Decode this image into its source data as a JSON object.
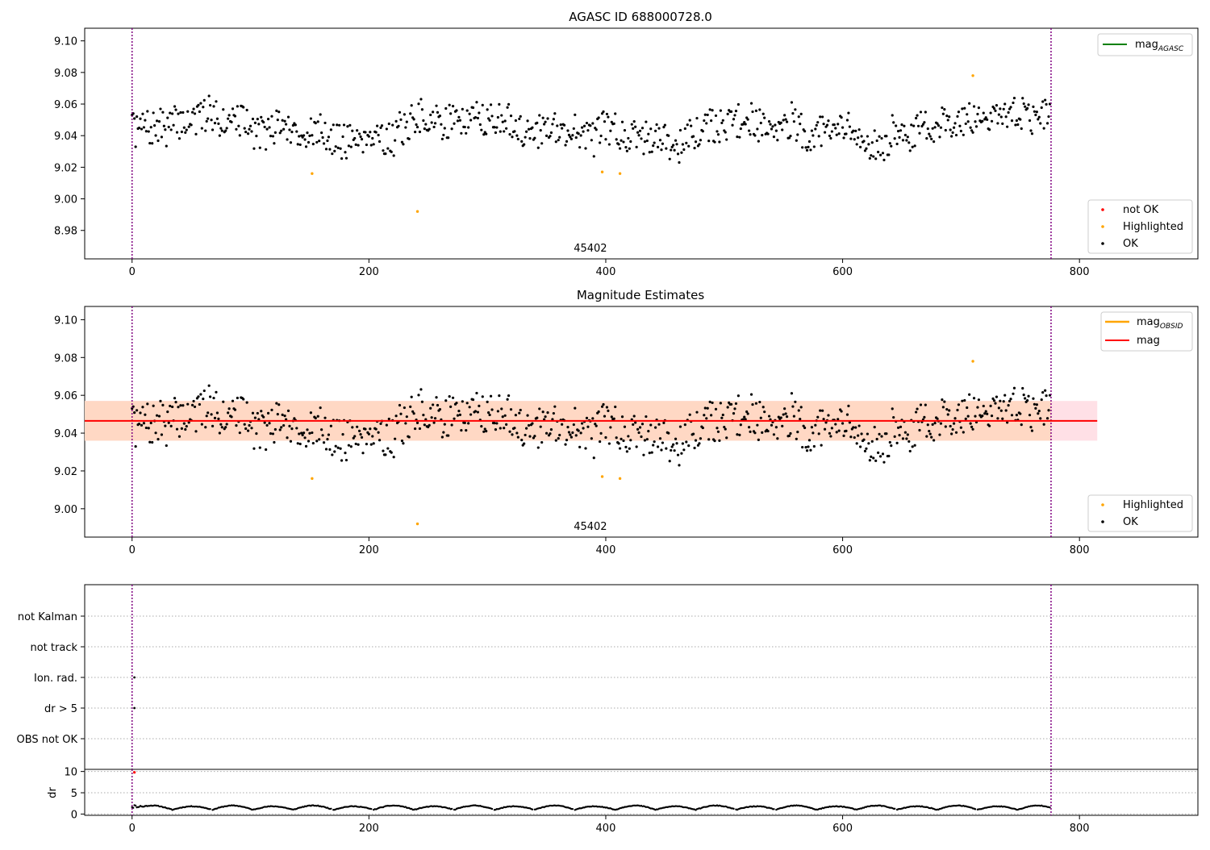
{
  "colors": {
    "ok": "#000000",
    "highlighted": "#ffa500",
    "not_ok": "#ff0000",
    "mag_agasc": "#008000",
    "mag_obsid": "#ffa500",
    "mag": "#ff0000",
    "band_outer": "#ffe0e6",
    "band_inner": "#ffd8c4",
    "obs_boundary": "#800080"
  },
  "chart_data": [
    {
      "id": "agasc",
      "type": "scatter",
      "title": "AGASC ID 688000728.0",
      "xlabel": "",
      "ylabel": "",
      "xlim": [
        -40,
        900
      ],
      "ylim": [
        8.962,
        9.108
      ],
      "xticks": [
        0,
        200,
        400,
        600,
        800
      ],
      "yticks": [
        8.98,
        9.0,
        9.02,
        9.04,
        9.06,
        9.08,
        9.1
      ],
      "obsid_label": {
        "text": "45402",
        "x": 387
      },
      "obs_boundaries": [
        0,
        776
      ],
      "legend_lines": [
        {
          "label": "mag",
          "subscript": "AGASC",
          "color_key": "mag_agasc"
        }
      ],
      "legend_points": [
        {
          "label": "not OK",
          "color_key": "not_ok"
        },
        {
          "label": "Highlighted",
          "color_key": "highlighted"
        },
        {
          "label": "OK",
          "color_key": "ok"
        }
      ],
      "series": [
        {
          "name": "Highlighted",
          "color_key": "highlighted",
          "x": [
            152,
            241,
            397,
            412,
            710
          ],
          "y": [
            9.016,
            8.992,
            9.017,
            9.016,
            9.078
          ]
        }
      ],
      "ok_points": {
        "n": 776,
        "base": 9.045,
        "seed": 7
      }
    },
    {
      "id": "mag_estimates",
      "type": "scatter",
      "title": "Magnitude Estimates",
      "xlabel": "",
      "ylabel": "",
      "xlim": [
        -40,
        900
      ],
      "ylim": [
        8.985,
        9.107
      ],
      "xticks": [
        0,
        200,
        400,
        600,
        800
      ],
      "yticks": [
        9.0,
        9.02,
        9.04,
        9.06,
        9.08,
        9.1
      ],
      "obsid_label": {
        "text": "45402",
        "x": 387
      },
      "obs_boundaries": [
        0,
        776
      ],
      "mag_line": {
        "value": 9.0465,
        "x": [
          -40,
          815
        ]
      },
      "mag_obsid_band": {
        "low": 9.036,
        "high": 9.057,
        "x": [
          -40,
          815
        ]
      },
      "legend_lines": [
        {
          "label": "mag",
          "subscript": "OBSID",
          "color_key": "mag_obsid"
        },
        {
          "label": "mag",
          "subscript": "",
          "color_key": "mag"
        }
      ],
      "legend_points": [
        {
          "label": "Highlighted",
          "color_key": "highlighted"
        },
        {
          "label": "OK",
          "color_key": "ok"
        }
      ],
      "series": [
        {
          "name": "Highlighted",
          "color_key": "highlighted",
          "x": [
            152,
            241,
            397,
            412,
            710
          ],
          "y": [
            9.016,
            8.992,
            9.017,
            9.016,
            9.078
          ]
        }
      ],
      "ok_points": {
        "n": 776,
        "base": 9.045,
        "seed": 7
      }
    },
    {
      "id": "flags",
      "type": "scatter",
      "xlim": [
        -40,
        900
      ],
      "categories": [
        "OBS not OK",
        "dr > 5",
        "Ion. rad.",
        "not track",
        "not Kalman"
      ],
      "obs_boundaries": [
        0,
        776
      ],
      "series": [
        {
          "name": "Ion. rad.",
          "x": [
            2
          ],
          "category": "Ion. rad."
        },
        {
          "name": "dr > 5",
          "x": [
            2
          ],
          "category": "dr > 5"
        }
      ]
    },
    {
      "id": "dr",
      "type": "scatter",
      "xlim": [
        -40,
        900
      ],
      "ylim": [
        -0.3,
        10.5
      ],
      "xticks": [
        0,
        200,
        400,
        600,
        800
      ],
      "yticks": [
        0,
        5,
        10
      ],
      "ylabel": "dr",
      "obs_boundaries": [
        0,
        776
      ],
      "not_ok_point": {
        "x": 2,
        "y": 9.8
      },
      "dr_points": {
        "n": 776,
        "seed": 11
      }
    }
  ]
}
